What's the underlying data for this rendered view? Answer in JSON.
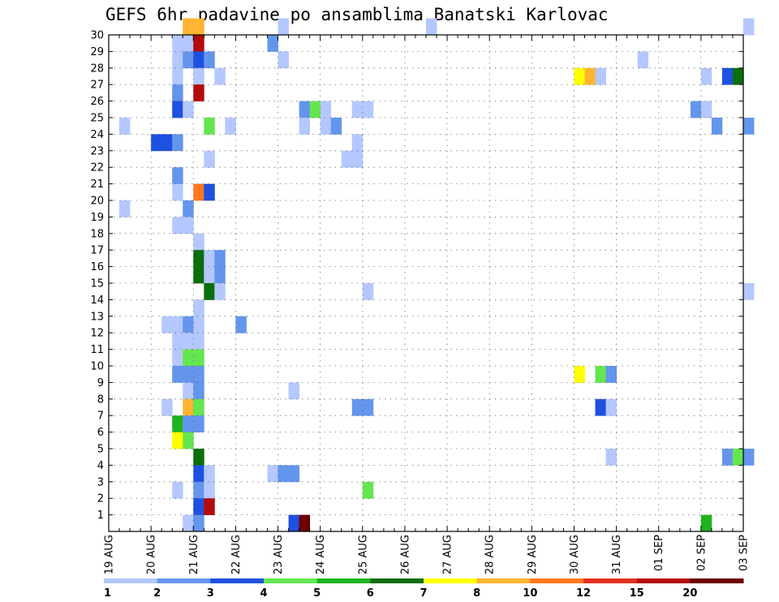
{
  "chart_data": {
    "type": "heatmap",
    "title": "GEFS 6hr padavine po ansamblima Banatski Karlovac",
    "xlabel": "",
    "ylabel": "",
    "x_tick_labels": [
      "19 AUG",
      "20 AUG",
      "21 AUG",
      "22 AUG",
      "23 AUG",
      "24 AUG",
      "25 AUG",
      "26 AUG",
      "27 AUG",
      "28 AUG",
      "29 AUG",
      "30 AUG",
      "31 AUG",
      "01 SEP",
      "02 SEP",
      "03 SEP"
    ],
    "y_tick_labels": [
      "1",
      "2",
      "3",
      "4",
      "5",
      "6",
      "7",
      "8",
      "9",
      "10",
      "11",
      "12",
      "13",
      "14",
      "15",
      "16",
      "17",
      "18",
      "19",
      "20",
      "21",
      "22",
      "23",
      "24",
      "25",
      "26",
      "27",
      "28",
      "29",
      "30"
    ],
    "x_range": [
      "19 AUG 00",
      "03 SEP 00"
    ],
    "y_range": [
      0,
      30
    ],
    "steps_per_day": 4,
    "grid": true,
    "colorbar": {
      "placement": "bottom",
      "labels": [
        "1",
        "2",
        "3",
        "4",
        "5",
        "6",
        "7",
        "8",
        "10",
        "12",
        "15",
        "20"
      ],
      "colors": [
        "#b4c8ff",
        "#6495ed",
        "#1e50e1",
        "#64e650",
        "#1eb41e",
        "#0a6e0a",
        "#ffff00",
        "#ffb432",
        "#ff781e",
        "#e1321e",
        "#b40a0a",
        "#6e0000"
      ]
    },
    "cells_note_format": "[member, time step (0 = 19 AUG 00 UTC, step = 6 h), color class index]",
    "cells": [
      [
        30,
        7,
        7
      ],
      [
        30,
        8,
        7
      ],
      [
        30,
        16,
        0
      ],
      [
        30,
        30,
        0
      ],
      [
        30,
        60,
        0
      ],
      [
        29,
        6,
        0
      ],
      [
        29,
        7,
        0
      ],
      [
        29,
        8,
        10
      ],
      [
        29,
        15,
        1
      ],
      [
        28,
        6,
        0
      ],
      [
        28,
        7,
        1
      ],
      [
        28,
        8,
        2
      ],
      [
        28,
        9,
        1
      ],
      [
        28,
        16,
        0
      ],
      [
        28,
        50,
        0
      ],
      [
        27,
        6,
        0
      ],
      [
        27,
        8,
        0
      ],
      [
        27,
        10,
        0
      ],
      [
        27,
        44,
        6
      ],
      [
        27,
        45,
        7
      ],
      [
        27,
        46,
        0
      ],
      [
        27,
        56,
        0
      ],
      [
        27,
        58,
        2
      ],
      [
        27,
        59,
        5
      ],
      [
        26,
        6,
        1
      ],
      [
        26,
        8,
        10
      ],
      [
        25,
        6,
        2
      ],
      [
        25,
        7,
        0
      ],
      [
        25,
        18,
        1
      ],
      [
        25,
        19,
        3
      ],
      [
        25,
        20,
        0
      ],
      [
        25,
        23,
        0
      ],
      [
        25,
        24,
        0
      ],
      [
        25,
        55,
        1
      ],
      [
        25,
        56,
        0
      ],
      [
        24,
        1,
        0
      ],
      [
        24,
        9,
        3
      ],
      [
        24,
        11,
        0
      ],
      [
        24,
        18,
        0
      ],
      [
        24,
        20,
        0
      ],
      [
        24,
        21,
        1
      ],
      [
        24,
        57,
        1
      ],
      [
        24,
        60,
        1
      ],
      [
        23,
        4,
        2
      ],
      [
        23,
        5,
        2
      ],
      [
        23,
        6,
        1
      ],
      [
        23,
        23,
        0
      ],
      [
        22,
        9,
        0
      ],
      [
        22,
        22,
        0
      ],
      [
        22,
        23,
        0
      ],
      [
        21,
        6,
        1
      ],
      [
        20,
        6,
        0
      ],
      [
        20,
        8,
        8
      ],
      [
        20,
        9,
        2
      ],
      [
        19,
        1,
        0
      ],
      [
        19,
        7,
        1
      ],
      [
        18,
        6,
        0
      ],
      [
        18,
        7,
        0
      ],
      [
        17,
        8,
        0
      ],
      [
        16,
        8,
        5
      ],
      [
        16,
        9,
        0
      ],
      [
        16,
        10,
        1
      ],
      [
        15,
        8,
        5
      ],
      [
        15,
        9,
        0
      ],
      [
        15,
        10,
        1
      ],
      [
        14,
        9,
        5
      ],
      [
        14,
        10,
        0
      ],
      [
        14,
        24,
        0
      ],
      [
        14,
        60,
        0
      ],
      [
        13,
        8,
        0
      ],
      [
        12,
        5,
        0
      ],
      [
        12,
        6,
        0
      ],
      [
        12,
        7,
        1
      ],
      [
        12,
        8,
        0
      ],
      [
        12,
        12,
        1
      ],
      [
        11,
        6,
        0
      ],
      [
        11,
        7,
        0
      ],
      [
        11,
        8,
        0
      ],
      [
        10,
        6,
        0
      ],
      [
        10,
        7,
        3
      ],
      [
        10,
        8,
        3
      ],
      [
        9,
        6,
        1
      ],
      [
        9,
        7,
        1
      ],
      [
        9,
        8,
        1
      ],
      [
        9,
        44,
        6
      ],
      [
        9,
        46,
        3
      ],
      [
        9,
        47,
        1
      ],
      [
        8,
        7,
        0
      ],
      [
        8,
        8,
        1
      ],
      [
        8,
        17,
        0
      ],
      [
        7,
        5,
        0
      ],
      [
        7,
        7,
        7
      ],
      [
        7,
        8,
        3
      ],
      [
        7,
        23,
        1
      ],
      [
        7,
        24,
        1
      ],
      [
        7,
        46,
        2
      ],
      [
        7,
        47,
        0
      ],
      [
        6,
        6,
        4
      ],
      [
        6,
        7,
        1
      ],
      [
        6,
        8,
        1
      ],
      [
        5,
        6,
        6
      ],
      [
        5,
        7,
        3
      ],
      [
        4,
        8,
        5
      ],
      [
        4,
        47,
        0
      ],
      [
        4,
        58,
        1
      ],
      [
        4,
        59,
        3
      ],
      [
        4,
        60,
        1
      ],
      [
        3,
        8,
        2
      ],
      [
        3,
        9,
        0
      ],
      [
        3,
        15,
        0
      ],
      [
        3,
        16,
        1
      ],
      [
        3,
        17,
        1
      ],
      [
        2,
        6,
        0
      ],
      [
        2,
        8,
        1
      ],
      [
        2,
        9,
        0
      ],
      [
        2,
        24,
        3
      ],
      [
        1,
        8,
        2
      ],
      [
        1,
        9,
        10
      ],
      [
        0,
        7,
        0
      ],
      [
        0,
        8,
        1
      ],
      [
        0,
        17,
        2
      ],
      [
        0,
        18,
        11
      ],
      [
        0,
        56,
        4
      ]
    ]
  }
}
